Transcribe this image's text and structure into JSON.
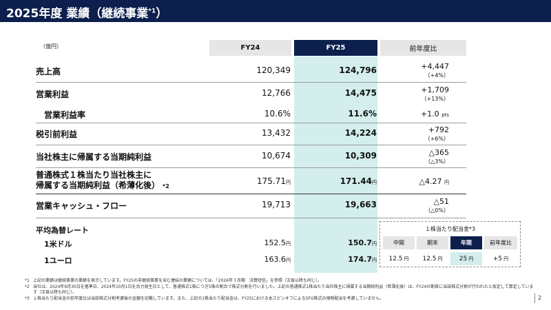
{
  "header": {
    "title": "2025年度 業績（継続事業",
    "title_sup": "*1",
    "title_close": "）"
  },
  "unit": "（億円）",
  "columns": {
    "fy24": "FY24",
    "fy25": "FY25",
    "yoy": "前年度比"
  },
  "rows": [
    {
      "label": "売上高",
      "fy24": "120,349",
      "fy25": "124,796",
      "yoy": "+4,447",
      "yoy_pct": "（+4%）"
    },
    {
      "label": "営業利益",
      "fy24": "12,766",
      "fy25": "14,475",
      "yoy": "+1,709",
      "yoy_pct": "（+13%）"
    },
    {
      "label": "営業利益率",
      "fy24": "10.6%",
      "fy25": "11.6%",
      "yoy": "+1.0",
      "yoy_unit": "pts"
    },
    {
      "label": "税引前利益",
      "fy24": "13,432",
      "fy25": "14,224",
      "yoy": "+792",
      "yoy_pct": "（+6%）"
    },
    {
      "label": "当社株主に帰属する当期純利益",
      "fy24": "10,674",
      "fy25": "10,309",
      "yoy": "△365",
      "yoy_pct": "（△3%）"
    },
    {
      "label_line1": "普通株式１株当たり当社株主に",
      "label_line2": "帰属する当期純利益（希薄化後）",
      "label_sup": "*2",
      "fy24": "175.71",
      "fy25": "171.44",
      "yen": "円",
      "yoy": "△4.27",
      "yoy_unit": "円"
    },
    {
      "label": "営業キャッシュ・フロー",
      "fy24": "19,713",
      "fy25": "19,663",
      "yoy": "△51",
      "yoy_pct": "（△0%）"
    }
  ],
  "fx": {
    "title": "平均為替レート",
    "usd": {
      "label": "1米ドル",
      "fy24": "152.5",
      "fy25": "150.7",
      "yen": "円"
    },
    "eur": {
      "label": "1ユーロ",
      "fy24": "163.6",
      "fy25": "174.7",
      "yen": "円"
    }
  },
  "dividend": {
    "title": "１株当たり配当金*3",
    "headers": [
      "中間",
      "期末",
      "年間",
      "前年度比"
    ],
    "values": [
      "12.5",
      "12.5",
      "25",
      "+5"
    ],
    "yen": "円"
  },
  "notes": [
    {
      "mark": "*1",
      "text": "上記の業績は継続事業の業績を表示しています。FY25の非継続事業を含む連結の業績については、「2026年３月期　決算短信」を参照（次頁以降も同じ）。"
    },
    {
      "mark": "*2",
      "text": "当社は、2024年9月30日を基準日、2024年10月1日を効力発生日として、普通株式1株につき5株の割合で株式分割を行いました。上記の普通株式1株当たり当社株主に帰属する当期純利益（希薄化後）は、FY24の期首に当該株式分割が行われたと仮定して算定しています（次頁以降も同じ）。"
    },
    {
      "mark": "*3",
      "text": "１株当たり配当金の前年度比は当該株式分割考慮後の金額を記載しています。また、上記の1株当たり配当金は、FY25における本スピンオフによるSFG株式の現物配当を考慮していません。"
    }
  ],
  "page_number": "2",
  "colors": {
    "navy": "#0c1f4d",
    "teal": "#d3eeec",
    "gray": "#e6e6e6"
  }
}
